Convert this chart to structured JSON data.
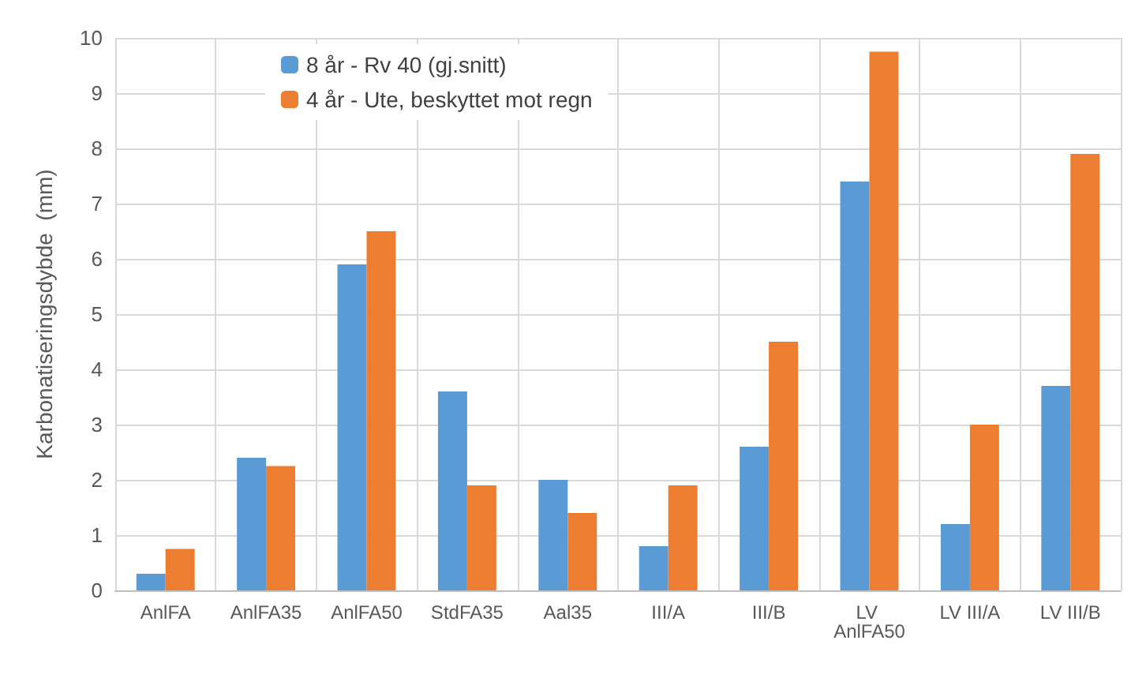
{
  "chart_data": {
    "type": "bar",
    "ylabel": "Karbonatiseringsdybde  (mm)",
    "categories": [
      "AnlFA",
      "AnlFA35",
      "AnlFA50",
      "StdFA35",
      "Aal35",
      "III/A",
      "III/B",
      "LV AnlFA50",
      "LV III/A",
      "LV III/B"
    ],
    "series": [
      {
        "name": "8 år - Rv 40 (gj.snitt)",
        "color": "#5b9bd5",
        "values": [
          0.3,
          2.4,
          5.9,
          3.6,
          2.0,
          0.8,
          2.6,
          7.4,
          1.2,
          3.7
        ]
      },
      {
        "name": "4 år - Ute, beskyttet mot regn",
        "color": "#ed7d31",
        "values": [
          0.75,
          2.25,
          6.5,
          1.9,
          1.4,
          1.9,
          4.5,
          9.75,
          3.0,
          7.9
        ]
      }
    ],
    "ylim": [
      0,
      10
    ],
    "yticks": [
      0,
      1,
      2,
      3,
      4,
      5,
      6,
      7,
      8,
      9,
      10
    ],
    "grid": true,
    "legend": "top left"
  }
}
